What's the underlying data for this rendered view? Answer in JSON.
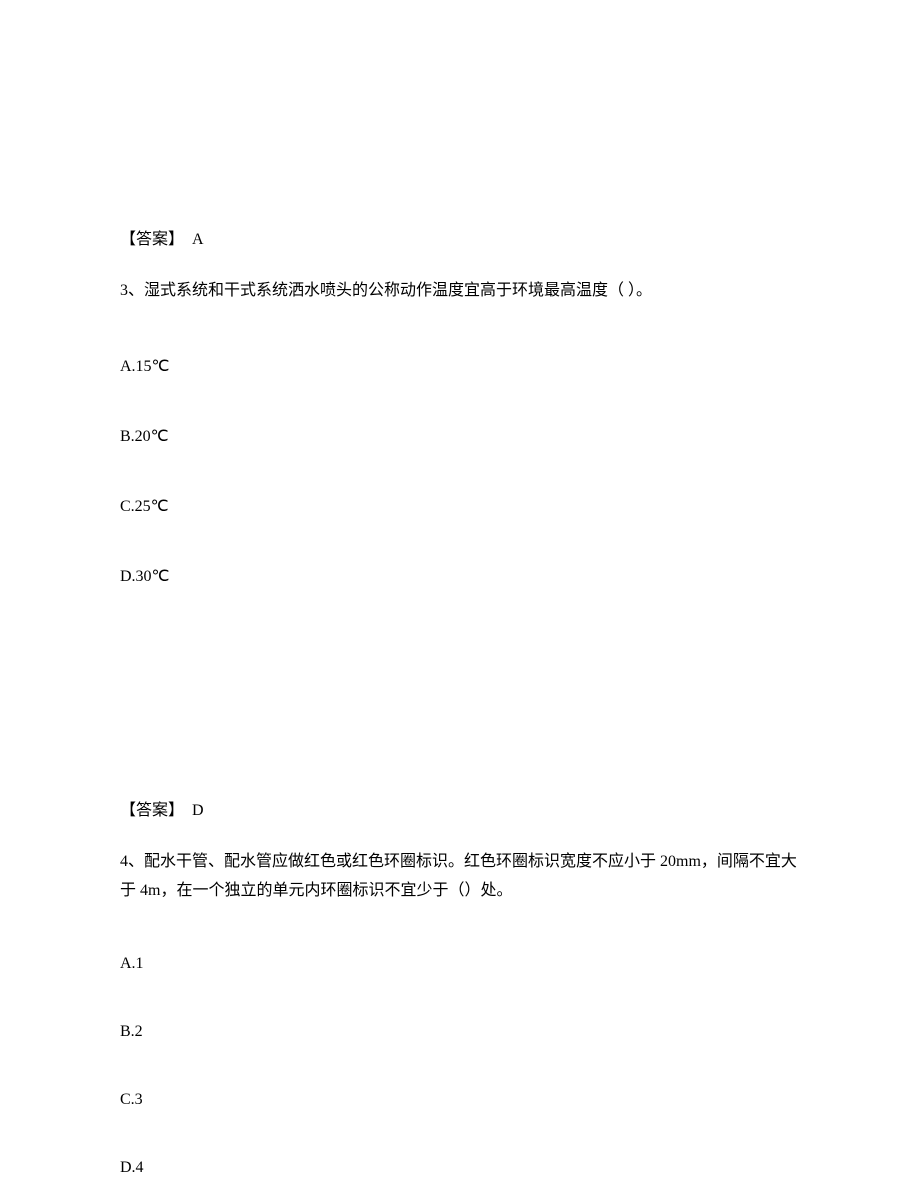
{
  "q2": {
    "answer_label": "【答案】",
    "answer_value": "A"
  },
  "q3": {
    "number": "3、",
    "text": "湿式系统和干式系统洒水喷头的公称动作温度宜高于环境最高温度（ ）。",
    "options": {
      "a": "A.15℃",
      "b": "B.20℃",
      "c": "C.25℃",
      "d": "D.30℃"
    },
    "answer_label": "【答案】",
    "answer_value": "D"
  },
  "q4": {
    "number": "4、",
    "text": "配水干管、配水管应做红色或红色环圈标识。红色环圈标识宽度不应小于 20mm，间隔不宜大于 4m，在一个独立的单元内环圈标识不宜少于（）处。",
    "options": {
      "a": "A.1",
      "b": "B.2",
      "c": "C.3",
      "d": "D.4"
    }
  }
}
